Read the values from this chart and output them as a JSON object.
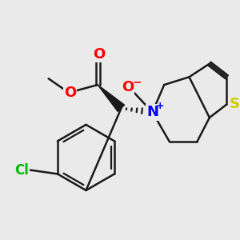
{
  "background_color": "#eaeaea",
  "bond_color": "#1a1a1a",
  "bond_width": 1.8,
  "atom_colors": {
    "O": "#ff0000",
    "N": "#0000ee",
    "S": "#cccc00",
    "Cl": "#00bb00",
    "C": "#1a1a1a"
  },
  "figsize": [
    3.0,
    3.0
  ],
  "dpi": 100
}
